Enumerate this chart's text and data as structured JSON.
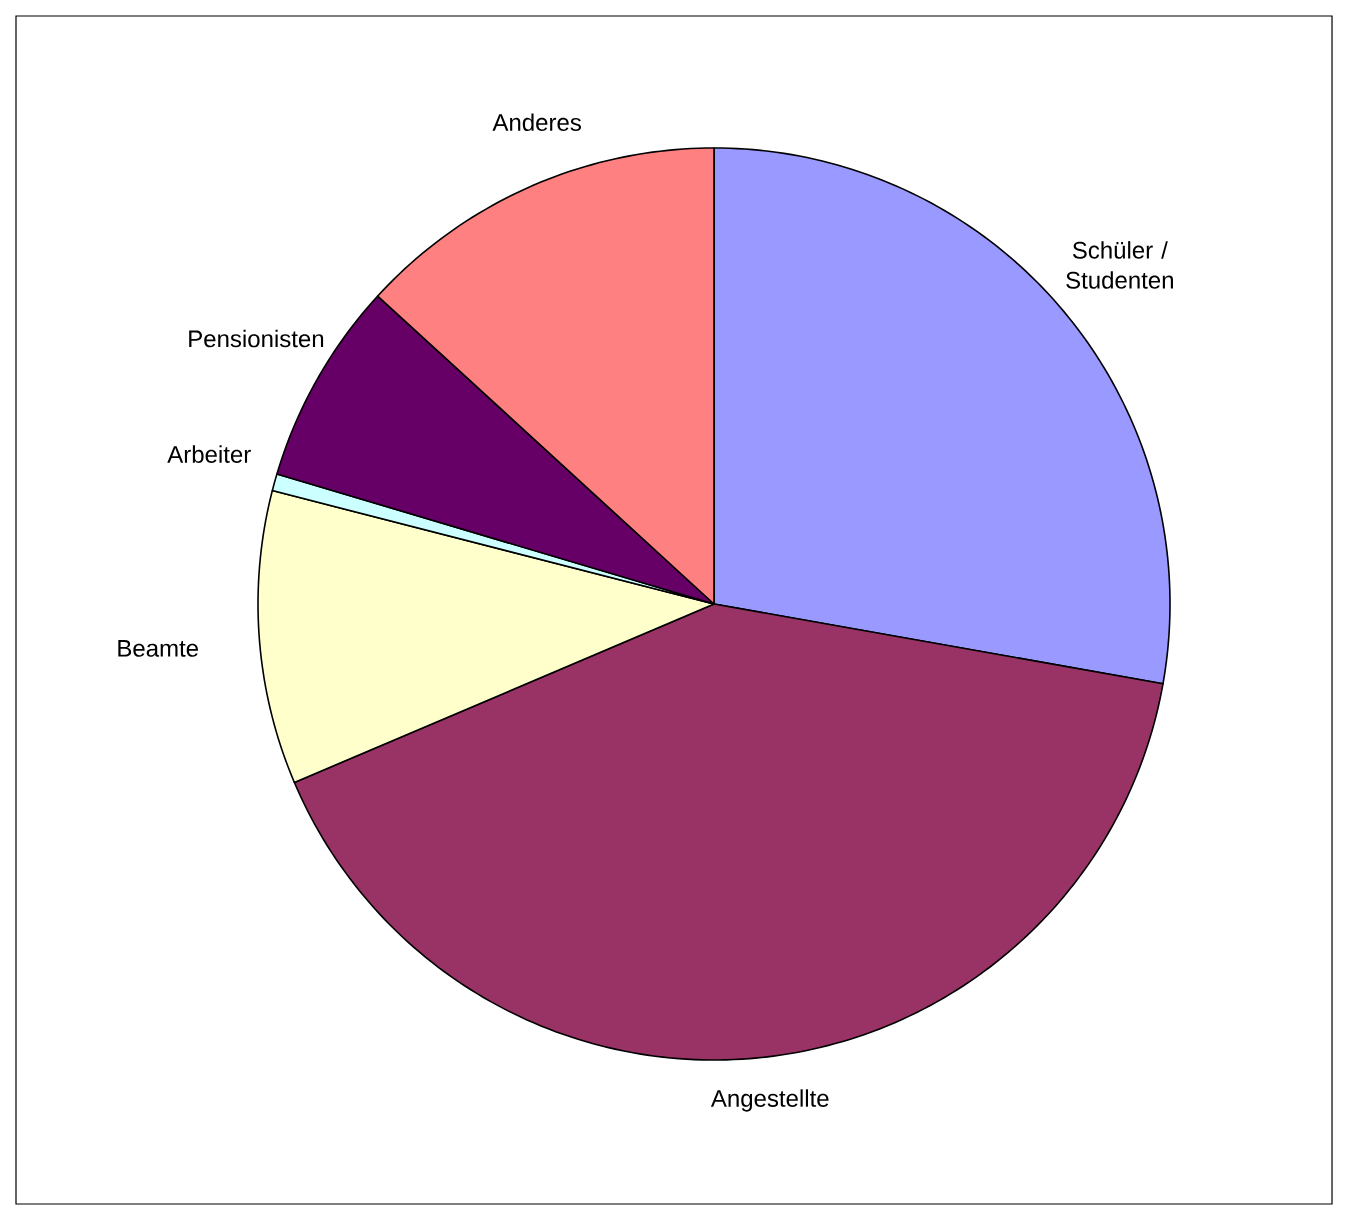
{
  "chart_data": {
    "type": "pie",
    "categories": [
      "Schüler / Studenten",
      "Angestellte",
      "Beamte",
      "Arbeiter",
      "Pensionisten",
      "Anderes"
    ],
    "values": [
      27.8,
      40.8,
      10.4,
      0.6,
      7.2,
      13.2
    ],
    "colors": [
      "#9999ff",
      "#993366",
      "#ffffcc",
      "#ccffff",
      "#660066",
      "#ff8080"
    ]
  }
}
